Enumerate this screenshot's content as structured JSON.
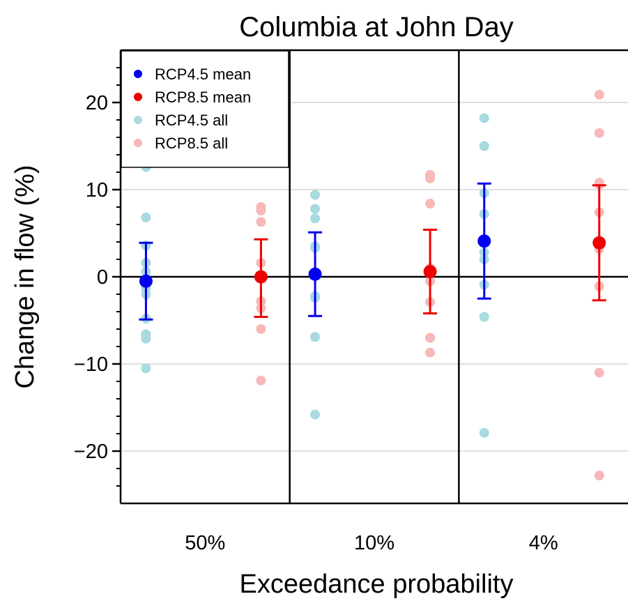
{
  "chart_data": {
    "type": "scatter",
    "title": "Columbia at John Day",
    "xlabel": "Exceedance probability",
    "ylabel": "Change in flow (%)",
    "categories": [
      "50%",
      "10%",
      "4%"
    ],
    "ylim": [
      -26,
      26
    ],
    "yticks": [
      {
        "value": 20,
        "label": "20"
      },
      {
        "value": 10,
        "label": "10"
      },
      {
        "value": 0,
        "label": "0"
      },
      {
        "value": -10,
        "label": "−10"
      },
      {
        "value": -20,
        "label": "−20"
      }
    ],
    "grid": "horizontal",
    "legend_position": "top-left",
    "series": [
      {
        "name": "RCP4.5 mean",
        "color": "#0000ee",
        "values": [
          -0.5,
          0.3,
          4.1
        ],
        "error_low": [
          -4.9,
          -4.5,
          -2.5
        ],
        "error_high": [
          3.9,
          5.1,
          10.7
        ]
      },
      {
        "name": "RCP8.5 mean",
        "color": "#ee0000",
        "values": [
          0.0,
          0.6,
          3.9
        ],
        "error_low": [
          -4.6,
          -4.2,
          -2.7
        ],
        "error_high": [
          4.3,
          5.4,
          10.5
        ]
      },
      {
        "name": "RCP4.5 all",
        "color": "#a8dadf",
        "points": [
          [
            12.6,
            6.8,
            3.6,
            1.6,
            0.6,
            -0.8,
            -1.3,
            -2.0,
            -4.8,
            -6.6,
            -7.1,
            -10.5
          ],
          [
            9.4,
            7.8,
            6.7,
            3.5,
            3.3,
            0.4,
            -2.2,
            -2.4,
            -6.9,
            -15.8
          ],
          [
            18.2,
            15.0,
            9.6,
            7.2,
            2.8,
            2.0,
            -0.9,
            -4.6,
            -17.9
          ]
        ]
      },
      {
        "name": "RCP8.5 all",
        "color": "#f7b8b8",
        "points": [
          [
            8.0,
            7.6,
            6.3,
            1.6,
            0.2,
            -2.8,
            -3.6,
            -6.0,
            -11.9
          ],
          [
            11.7,
            11.3,
            8.4,
            1.0,
            -0.5,
            -2.9,
            -7.0,
            -8.7
          ],
          [
            20.9,
            16.5,
            10.8,
            10.6,
            7.4,
            4.0,
            3.2,
            -1.1,
            -11.0,
            -22.8
          ]
        ]
      }
    ]
  }
}
